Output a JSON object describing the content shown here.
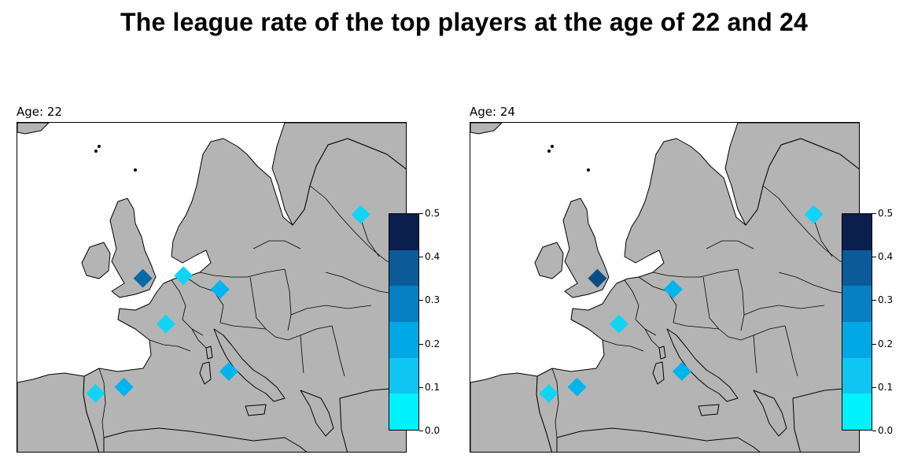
{
  "title": "The league rate of the top players at the age of 22 and 24",
  "colorbar": {
    "ticks": [
      "0.5",
      "0.4",
      "0.3",
      "0.2",
      "0.1",
      "0.0"
    ],
    "bin_colors_top_to_bottom": [
      "#0a1f4e",
      "#0d5a99",
      "#0580c2",
      "#00a8e6",
      "#0fc6f2",
      "#00f2fe"
    ]
  },
  "colors": {
    "land": "#b4b4b4",
    "sea": "#ffffff",
    "border": "#000000"
  },
  "panels": [
    {
      "title": "Age: 22",
      "markers": [
        {
          "name": "england",
          "lon": -1.2,
          "lat": 52.2,
          "value": 0.35,
          "color": "#0d67a6"
        },
        {
          "name": "netherlands",
          "lon": 4.8,
          "lat": 52.5,
          "value": 0.05,
          "color": "#10d4f6"
        },
        {
          "name": "germany",
          "lon": 10.2,
          "lat": 51.0,
          "value": 0.15,
          "color": "#00b4ee"
        },
        {
          "name": "france",
          "lon": 2.2,
          "lat": 47.2,
          "value": 0.05,
          "color": "#10d4f6"
        },
        {
          "name": "italy",
          "lon": 11.5,
          "lat": 42.0,
          "value": 0.15,
          "color": "#00b4ee"
        },
        {
          "name": "spain",
          "lon": -4.0,
          "lat": 40.3,
          "value": 0.15,
          "color": "#00b4ee"
        },
        {
          "name": "portugal",
          "lon": -8.2,
          "lat": 39.6,
          "value": 0.05,
          "color": "#10d4f6"
        },
        {
          "name": "russia",
          "lon": 31.0,
          "lat": 59.2,
          "value": 0.05,
          "color": "#10d4f6"
        }
      ]
    },
    {
      "title": "Age: 24",
      "markers": [
        {
          "name": "england",
          "lon": -1.0,
          "lat": 52.2,
          "value": 0.45,
          "color": "#0a4d85"
        },
        {
          "name": "germany",
          "lon": 10.2,
          "lat": 51.0,
          "value": 0.15,
          "color": "#00b4ee"
        },
        {
          "name": "france",
          "lon": 2.2,
          "lat": 47.2,
          "value": 0.05,
          "color": "#10d4f6"
        },
        {
          "name": "italy",
          "lon": 11.5,
          "lat": 42.0,
          "value": 0.15,
          "color": "#00b4ee"
        },
        {
          "name": "spain",
          "lon": -4.0,
          "lat": 40.3,
          "value": 0.15,
          "color": "#00b4ee"
        },
        {
          "name": "portugal",
          "lon": -8.2,
          "lat": 39.6,
          "value": 0.05,
          "color": "#10d4f6"
        },
        {
          "name": "russia",
          "lon": 31.0,
          "lat": 59.2,
          "value": 0.05,
          "color": "#10d4f6"
        }
      ]
    }
  ]
}
